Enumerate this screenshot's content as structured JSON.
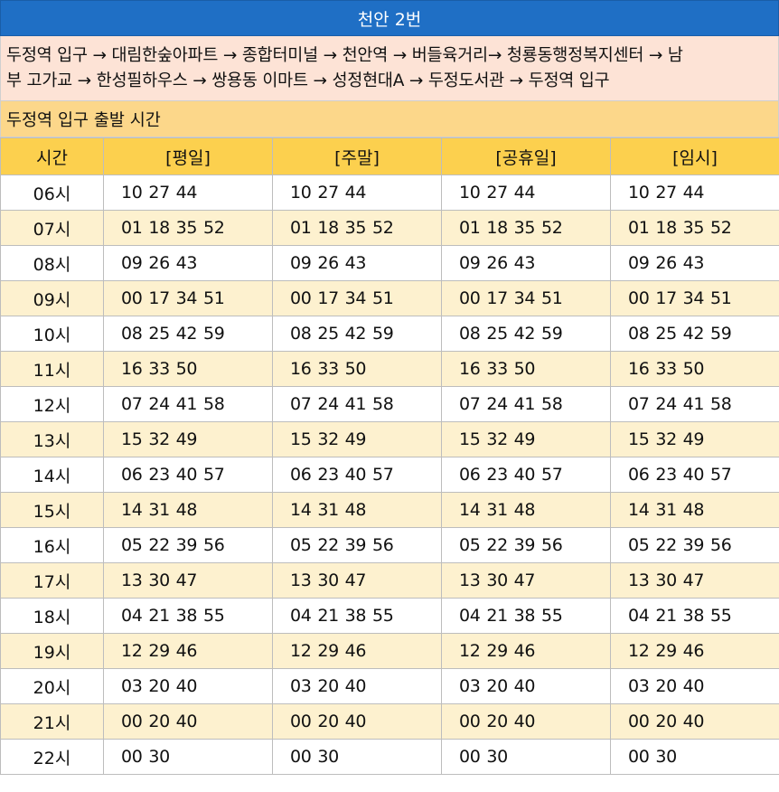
{
  "title": "천안 2번",
  "route_line1": "두정역 입구 → 대림한숲아파트 → 종합터미널 → 천안역 → 버들육거리→ 청룡동행정복지센터 → 남",
  "route_line2": "부 고가교 → 한성필하우스 → 쌍용동 이마트 → 성정현대A → 두정도서관 → 두정역 입구",
  "depart_label": "두정역 입구 출발 시간",
  "headers": [
    "시간",
    "[평일]",
    "[주말]",
    "[공휴일]",
    "[임시]"
  ],
  "colors": {
    "title_bg": "#1f6fc5",
    "route_bg": "#fde3d6",
    "depart_bg": "#fcd78a",
    "header_bg": "#fcd04e",
    "alt_row_bg": "#fdf1cf"
  },
  "rows": [
    {
      "hour": "06시",
      "weekday": "10 27 44",
      "weekend": "10 27 44",
      "holiday": "10 27 44",
      "temporary": "10 27 44"
    },
    {
      "hour": "07시",
      "weekday": "01 18 35 52",
      "weekend": "01 18 35 52",
      "holiday": "01 18 35 52",
      "temporary": "01 18 35 52"
    },
    {
      "hour": "08시",
      "weekday": "09 26 43",
      "weekend": "09 26 43",
      "holiday": "09 26 43",
      "temporary": "09 26 43"
    },
    {
      "hour": "09시",
      "weekday": "00 17 34 51",
      "weekend": "00 17 34 51",
      "holiday": "00 17 34 51",
      "temporary": "00 17 34 51"
    },
    {
      "hour": "10시",
      "weekday": "08 25 42 59",
      "weekend": "08 25 42 59",
      "holiday": "08 25 42 59",
      "temporary": "08 25 42 59"
    },
    {
      "hour": "11시",
      "weekday": "16 33 50",
      "weekend": "16 33 50",
      "holiday": "16 33 50",
      "temporary": "16 33 50"
    },
    {
      "hour": "12시",
      "weekday": "07 24 41 58",
      "weekend": "07 24 41 58",
      "holiday": "07 24 41 58",
      "temporary": "07 24 41 58"
    },
    {
      "hour": "13시",
      "weekday": "15 32 49",
      "weekend": "15 32 49",
      "holiday": "15 32 49",
      "temporary": "15 32 49"
    },
    {
      "hour": "14시",
      "weekday": "06 23 40 57",
      "weekend": "06 23 40 57",
      "holiday": "06 23 40 57",
      "temporary": "06 23 40 57"
    },
    {
      "hour": "15시",
      "weekday": "14 31 48",
      "weekend": "14 31 48",
      "holiday": "14 31 48",
      "temporary": "14 31 48"
    },
    {
      "hour": "16시",
      "weekday": "05 22 39 56",
      "weekend": "05 22 39 56",
      "holiday": "05 22 39 56",
      "temporary": "05 22 39 56"
    },
    {
      "hour": "17시",
      "weekday": "13 30 47",
      "weekend": "13 30 47",
      "holiday": "13 30 47",
      "temporary": "13 30 47"
    },
    {
      "hour": "18시",
      "weekday": "04 21 38 55",
      "weekend": "04 21 38 55",
      "holiday": "04 21 38 55",
      "temporary": "04 21 38 55"
    },
    {
      "hour": "19시",
      "weekday": "12 29 46",
      "weekend": "12 29 46",
      "holiday": "12 29 46",
      "temporary": "12 29 46"
    },
    {
      "hour": "20시",
      "weekday": "03 20 40",
      "weekend": "03 20 40",
      "holiday": "03 20 40",
      "temporary": "03 20 40"
    },
    {
      "hour": "21시",
      "weekday": "00 20 40",
      "weekend": "00 20 40",
      "holiday": "00 20 40",
      "temporary": "00 20 40"
    },
    {
      "hour": "22시",
      "weekday": "00 30",
      "weekend": "00 30",
      "holiday": "00 30",
      "temporary": "00 30"
    }
  ]
}
